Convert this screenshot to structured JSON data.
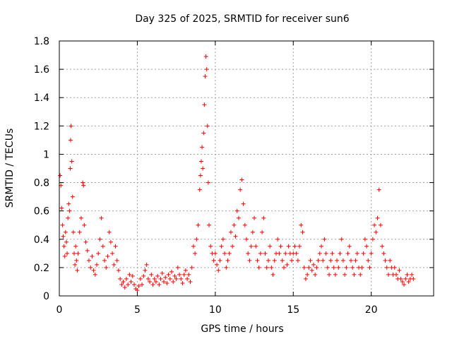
{
  "chart_data": {
    "type": "scatter",
    "title": "Day 325 of 2025, SRMTID for receiver sun6",
    "xlabel": "GPS time / hours",
    "ylabel": "SRMTID / TECUs",
    "xlim": [
      0,
      24
    ],
    "ylim": [
      0,
      1.8
    ],
    "xticks": [
      "0",
      "5",
      "10",
      "15",
      "20"
    ],
    "yticks": [
      "0",
      "0.2",
      "0.4",
      "0.6",
      "0.8",
      "1",
      "1.2",
      "1.4",
      "1.6",
      "1.8"
    ],
    "grid": true,
    "marker": "+",
    "color": "#ff0000",
    "series": [
      {
        "name": "SRMTID",
        "points": [
          [
            0.05,
            0.85
          ],
          [
            0.1,
            0.78
          ],
          [
            0.15,
            0.62
          ],
          [
            0.2,
            0.5
          ],
          [
            0.25,
            0.42
          ],
          [
            0.3,
            0.35
          ],
          [
            0.35,
            0.28
          ],
          [
            0.4,
            0.45
          ],
          [
            0.45,
            0.38
          ],
          [
            0.5,
            0.3
          ],
          [
            0.55,
            0.55
          ],
          [
            0.6,
            0.65
          ],
          [
            0.65,
            0.6
          ],
          [
            0.7,
            0.9
          ],
          [
            0.72,
            1.1
          ],
          [
            0.75,
            1.2
          ],
          [
            0.8,
            0.95
          ],
          [
            0.85,
            0.7
          ],
          [
            0.9,
            0.45
          ],
          [
            0.95,
            0.3
          ],
          [
            1.0,
            0.22
          ],
          [
            1.05,
            0.35
          ],
          [
            1.1,
            0.25
          ],
          [
            1.15,
            0.18
          ],
          [
            1.2,
            0.3
          ],
          [
            1.3,
            0.45
          ],
          [
            1.4,
            0.55
          ],
          [
            1.5,
            0.8
          ],
          [
            1.55,
            0.78
          ],
          [
            1.6,
            0.5
          ],
          [
            1.7,
            0.38
          ],
          [
            1.8,
            0.32
          ],
          [
            1.9,
            0.25
          ],
          [
            2.0,
            0.2
          ],
          [
            2.1,
            0.28
          ],
          [
            2.2,
            0.18
          ],
          [
            2.3,
            0.15
          ],
          [
            2.4,
            0.22
          ],
          [
            2.5,
            0.3
          ],
          [
            2.6,
            0.4
          ],
          [
            2.7,
            0.55
          ],
          [
            2.8,
            0.35
          ],
          [
            2.9,
            0.25
          ],
          [
            3.0,
            0.2
          ],
          [
            3.1,
            0.28
          ],
          [
            3.2,
            0.45
          ],
          [
            3.3,
            0.38
          ],
          [
            3.4,
            0.3
          ],
          [
            3.5,
            0.22
          ],
          [
            3.6,
            0.35
          ],
          [
            3.7,
            0.25
          ],
          [
            3.8,
            0.18
          ],
          [
            3.9,
            0.12
          ],
          [
            4.0,
            0.08
          ],
          [
            4.1,
            0.1
          ],
          [
            4.2,
            0.06
          ],
          [
            4.3,
            0.12
          ],
          [
            4.4,
            0.08
          ],
          [
            4.5,
            0.15
          ],
          [
            4.6,
            0.1
          ],
          [
            4.7,
            0.14
          ],
          [
            4.8,
            0.08
          ],
          [
            4.9,
            0.05
          ],
          [
            5.0,
            0.04
          ],
          [
            5.1,
            0.07
          ],
          [
            5.2,
            0.12
          ],
          [
            5.3,
            0.08
          ],
          [
            5.4,
            0.14
          ],
          [
            5.5,
            0.18
          ],
          [
            5.6,
            0.22
          ],
          [
            5.7,
            0.12
          ],
          [
            5.8,
            0.1
          ],
          [
            5.9,
            0.15
          ],
          [
            6.0,
            0.08
          ],
          [
            6.1,
            0.12
          ],
          [
            6.2,
            0.1
          ],
          [
            6.3,
            0.14
          ],
          [
            6.4,
            0.08
          ],
          [
            6.5,
            0.12
          ],
          [
            6.6,
            0.16
          ],
          [
            6.7,
            0.1
          ],
          [
            6.8,
            0.13
          ],
          [
            6.9,
            0.09
          ],
          [
            7.0,
            0.15
          ],
          [
            7.1,
            0.12
          ],
          [
            7.2,
            0.17
          ],
          [
            7.3,
            0.1
          ],
          [
            7.4,
            0.14
          ],
          [
            7.5,
            0.12
          ],
          [
            7.6,
            0.2
          ],
          [
            7.7,
            0.15
          ],
          [
            7.8,
            0.12
          ],
          [
            7.9,
            0.09
          ],
          [
            8.0,
            0.15
          ],
          [
            8.1,
            0.18
          ],
          [
            8.2,
            0.12
          ],
          [
            8.3,
            0.15
          ],
          [
            8.4,
            0.1
          ],
          [
            8.5,
            0.2
          ],
          [
            8.6,
            0.35
          ],
          [
            8.7,
            0.3
          ],
          [
            8.8,
            0.4
          ],
          [
            8.9,
            0.5
          ],
          [
            9.0,
            0.75
          ],
          [
            9.05,
            0.85
          ],
          [
            9.1,
            0.95
          ],
          [
            9.15,
            1.05
          ],
          [
            9.2,
            0.9
          ],
          [
            9.25,
            1.15
          ],
          [
            9.3,
            1.35
          ],
          [
            9.35,
            1.55
          ],
          [
            9.4,
            1.69
          ],
          [
            9.45,
            1.6
          ],
          [
            9.5,
            1.2
          ],
          [
            9.55,
            0.8
          ],
          [
            9.6,
            0.5
          ],
          [
            9.7,
            0.35
          ],
          [
            9.8,
            0.3
          ],
          [
            9.9,
            0.25
          ],
          [
            10.0,
            0.3
          ],
          [
            10.1,
            0.22
          ],
          [
            10.2,
            0.18
          ],
          [
            10.3,
            0.25
          ],
          [
            10.4,
            0.35
          ],
          [
            10.5,
            0.4
          ],
          [
            10.6,
            0.3
          ],
          [
            10.7,
            0.2
          ],
          [
            10.8,
            0.25
          ],
          [
            10.9,
            0.3
          ],
          [
            11.0,
            0.45
          ],
          [
            11.1,
            0.35
          ],
          [
            11.2,
            0.5
          ],
          [
            11.3,
            0.42
          ],
          [
            11.4,
            0.6
          ],
          [
            11.5,
            0.55
          ],
          [
            11.6,
            0.75
          ],
          [
            11.7,
            0.82
          ],
          [
            11.8,
            0.65
          ],
          [
            11.9,
            0.5
          ],
          [
            12.0,
            0.4
          ],
          [
            12.1,
            0.3
          ],
          [
            12.2,
            0.25
          ],
          [
            12.3,
            0.35
          ],
          [
            12.4,
            0.45
          ],
          [
            12.5,
            0.55
          ],
          [
            12.6,
            0.35
          ],
          [
            12.7,
            0.25
          ],
          [
            12.8,
            0.2
          ],
          [
            12.9,
            0.3
          ],
          [
            13.0,
            0.45
          ],
          [
            13.1,
            0.55
          ],
          [
            13.2,
            0.3
          ],
          [
            13.3,
            0.2
          ],
          [
            13.4,
            0.25
          ],
          [
            13.5,
            0.35
          ],
          [
            13.6,
            0.2
          ],
          [
            13.7,
            0.15
          ],
          [
            13.8,
            0.25
          ],
          [
            13.9,
            0.3
          ],
          [
            14.0,
            0.4
          ],
          [
            14.1,
            0.3
          ],
          [
            14.2,
            0.35
          ],
          [
            14.3,
            0.25
          ],
          [
            14.4,
            0.2
          ],
          [
            14.5,
            0.3
          ],
          [
            14.6,
            0.22
          ],
          [
            14.7,
            0.35
          ],
          [
            14.8,
            0.3
          ],
          [
            14.9,
            0.25
          ],
          [
            15.0,
            0.3
          ],
          [
            15.1,
            0.35
          ],
          [
            15.2,
            0.3
          ],
          [
            15.3,
            0.25
          ],
          [
            15.4,
            0.35
          ],
          [
            15.5,
            0.5
          ],
          [
            15.6,
            0.45
          ],
          [
            15.7,
            0.2
          ],
          [
            15.8,
            0.12
          ],
          [
            15.9,
            0.15
          ],
          [
            16.0,
            0.2
          ],
          [
            16.1,
            0.25
          ],
          [
            16.2,
            0.18
          ],
          [
            16.3,
            0.22
          ],
          [
            16.4,
            0.15
          ],
          [
            16.5,
            0.2
          ],
          [
            16.6,
            0.25
          ],
          [
            16.7,
            0.3
          ],
          [
            16.8,
            0.35
          ],
          [
            16.9,
            0.25
          ],
          [
            17.0,
            0.4
          ],
          [
            17.1,
            0.3
          ],
          [
            17.2,
            0.2
          ],
          [
            17.3,
            0.15
          ],
          [
            17.4,
            0.25
          ],
          [
            17.5,
            0.3
          ],
          [
            17.6,
            0.2
          ],
          [
            17.7,
            0.15
          ],
          [
            17.8,
            0.25
          ],
          [
            17.9,
            0.2
          ],
          [
            18.0,
            0.3
          ],
          [
            18.1,
            0.4
          ],
          [
            18.2,
            0.25
          ],
          [
            18.3,
            0.15
          ],
          [
            18.4,
            0.2
          ],
          [
            18.5,
            0.3
          ],
          [
            18.6,
            0.35
          ],
          [
            18.7,
            0.25
          ],
          [
            18.8,
            0.2
          ],
          [
            18.9,
            0.15
          ],
          [
            19.0,
            0.25
          ],
          [
            19.1,
            0.3
          ],
          [
            19.2,
            0.2
          ],
          [
            19.3,
            0.15
          ],
          [
            19.4,
            0.2
          ],
          [
            19.5,
            0.3
          ],
          [
            19.6,
            0.4
          ],
          [
            19.7,
            0.35
          ],
          [
            19.8,
            0.25
          ],
          [
            19.9,
            0.2
          ],
          [
            20.0,
            0.3
          ],
          [
            20.1,
            0.4
          ],
          [
            20.2,
            0.5
          ],
          [
            20.3,
            0.45
          ],
          [
            20.4,
            0.55
          ],
          [
            20.5,
            0.75
          ],
          [
            20.6,
            0.5
          ],
          [
            20.7,
            0.35
          ],
          [
            20.8,
            0.3
          ],
          [
            20.9,
            0.25
          ],
          [
            21.0,
            0.2
          ],
          [
            21.1,
            0.15
          ],
          [
            21.2,
            0.25
          ],
          [
            21.3,
            0.2
          ],
          [
            21.4,
            0.15
          ],
          [
            21.5,
            0.2
          ],
          [
            21.6,
            0.15
          ],
          [
            21.7,
            0.12
          ],
          [
            21.8,
            0.18
          ],
          [
            21.9,
            0.12
          ],
          [
            22.0,
            0.1
          ],
          [
            22.1,
            0.08
          ],
          [
            22.2,
            0.12
          ],
          [
            22.3,
            0.15
          ],
          [
            22.4,
            0.1
          ],
          [
            22.5,
            0.12
          ],
          [
            22.6,
            0.15
          ],
          [
            22.7,
            0.12
          ]
        ]
      }
    ]
  }
}
